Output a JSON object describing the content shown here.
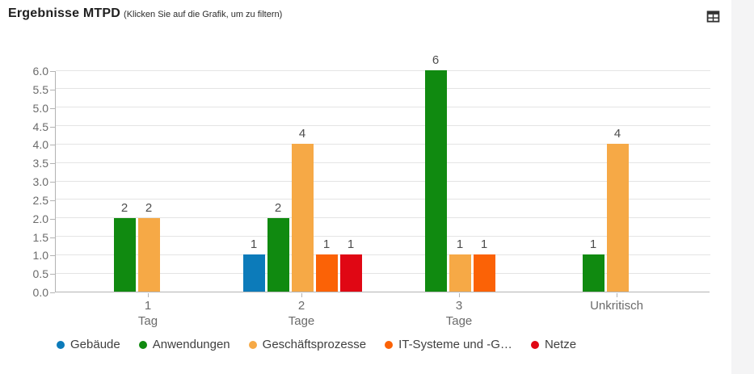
{
  "header": {
    "title": "Ergebnisse MTPD",
    "subtitle": "(Klicken Sie auf die Grafik, um zu filtern)"
  },
  "toolbar": {
    "table_icon": "table-view-icon"
  },
  "colors": {
    "card_background": "#ffffff",
    "page_background": "#f4f4f5",
    "axis_line": "#b3b3b3",
    "grid_line": "#e4e4e4",
    "axis_text": "#6b6b6b",
    "value_text": "#4d4d4d",
    "title_text": "#1f1f1f",
    "icon": "#333333"
  },
  "chart_data": {
    "type": "bar",
    "title": "Ergebnisse MTPD",
    "categories": [
      "1 Tag",
      "2 Tage",
      "3 Tage",
      "Unkritisch"
    ],
    "series": [
      {
        "name": "Gebäude",
        "color": "#0c7bba",
        "values": [
          0,
          1,
          0,
          0
        ]
      },
      {
        "name": "Anwendungen",
        "color": "#108a10",
        "values": [
          2,
          2,
          6,
          1
        ]
      },
      {
        "name": "Geschäftsprozesse",
        "color": "#f6a946",
        "values": [
          2,
          4,
          1,
          4
        ]
      },
      {
        "name": "IT-Systeme und -G…",
        "color": "#fb6206",
        "values": [
          0,
          1,
          1,
          0
        ]
      },
      {
        "name": "Netze",
        "color": "#e00714",
        "values": [
          0,
          1,
          0,
          0
        ]
      }
    ],
    "ylim": [
      0,
      6
    ],
    "ytick_labels": [
      "0.0",
      "0.5",
      "1.0",
      "1.5",
      "2.0",
      "2.5",
      "3.0",
      "3.5",
      "4.0",
      "4.5",
      "5.0",
      "5.5",
      "6.0"
    ],
    "grid": true,
    "value_labels": true,
    "legend_position": "bottom"
  }
}
